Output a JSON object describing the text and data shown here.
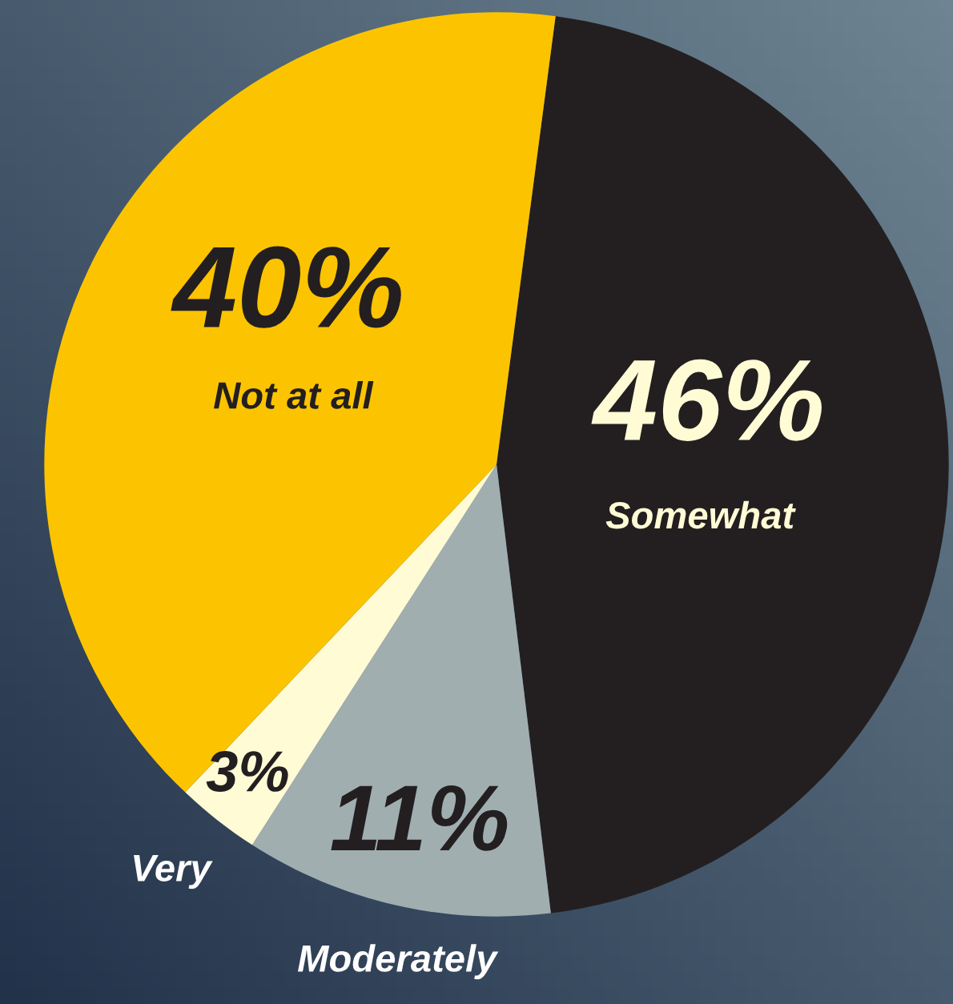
{
  "chart_data": {
    "type": "pie",
    "categories": [
      "Somewhat",
      "Moderately",
      "Very",
      "Not at all"
    ],
    "values": [
      46,
      11,
      3,
      40
    ],
    "value_labels": [
      "46%",
      "11%",
      "3%",
      "40%"
    ],
    "colors": [
      "#231f20",
      "#a0aeb0",
      "#fffbd5",
      "#fcc400"
    ]
  }
}
